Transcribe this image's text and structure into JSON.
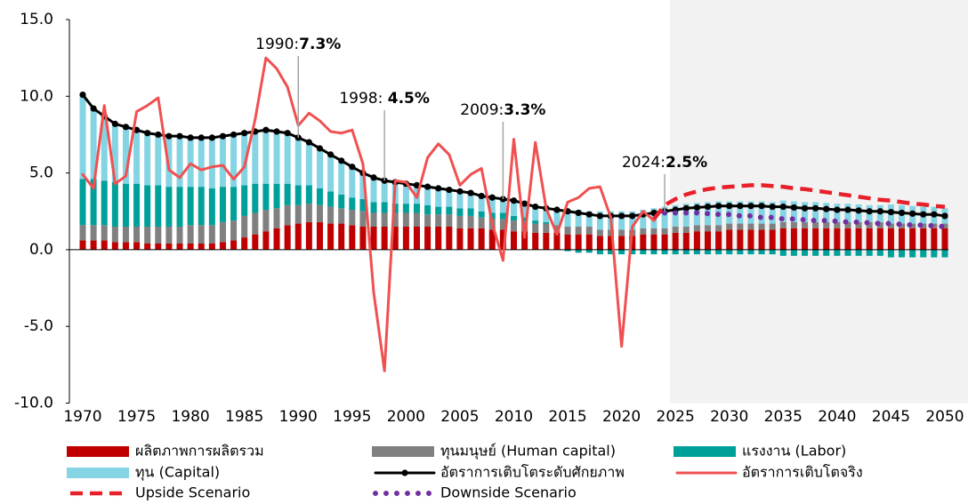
{
  "chart_data": {
    "type": "combo",
    "x": [
      1970,
      1971,
      1972,
      1973,
      1974,
      1975,
      1976,
      1977,
      1978,
      1979,
      1980,
      1981,
      1982,
      1983,
      1984,
      1985,
      1986,
      1987,
      1988,
      1989,
      1990,
      1991,
      1992,
      1993,
      1994,
      1995,
      1996,
      1997,
      1998,
      1999,
      2000,
      2001,
      2002,
      2003,
      2004,
      2005,
      2006,
      2007,
      2008,
      2009,
      2010,
      2011,
      2012,
      2013,
      2014,
      2015,
      2016,
      2017,
      2018,
      2019,
      2020,
      2021,
      2022,
      2023,
      2024,
      2025,
      2026,
      2027,
      2028,
      2029,
      2030,
      2031,
      2032,
      2033,
      2034,
      2035,
      2036,
      2037,
      2038,
      2039,
      2040,
      2041,
      2042,
      2043,
      2044,
      2045,
      2046,
      2047,
      2048,
      2049,
      2050
    ],
    "xlim": [
      1970,
      2050
    ],
    "xticks": [
      1970,
      1975,
      1980,
      1985,
      1990,
      1995,
      2000,
      2005,
      2010,
      2015,
      2020,
      2025,
      2030,
      2035,
      2040,
      2045,
      2050
    ],
    "ylim": [
      -10,
      15
    ],
    "yticks": [
      {
        "value": -10,
        "label": "-10.0"
      },
      {
        "value": -5,
        "label": "-5.0"
      },
      {
        "value": 0,
        "label": "0.0"
      },
      {
        "value": 5,
        "label": "5.0"
      },
      {
        "value": 10,
        "label": "10.0"
      },
      {
        "value": 15,
        "label": "15.0"
      }
    ],
    "series": [
      {
        "name": "ผลิตภาพการผลิตรวม",
        "type": "bar",
        "color": "#c00000",
        "values": [
          0.6,
          0.6,
          0.6,
          0.5,
          0.5,
          0.5,
          0.4,
          0.4,
          0.4,
          0.4,
          0.4,
          0.4,
          0.4,
          0.5,
          0.6,
          0.8,
          1.0,
          1.2,
          1.4,
          1.6,
          1.7,
          1.8,
          1.8,
          1.7,
          1.7,
          1.6,
          1.5,
          1.5,
          1.5,
          1.5,
          1.5,
          1.5,
          1.5,
          1.5,
          1.5,
          1.4,
          1.4,
          1.4,
          1.3,
          1.3,
          1.2,
          1.2,
          1.1,
          1.1,
          1.1,
          1.0,
          1.0,
          1.0,
          0.9,
          0.9,
          0.9,
          0.9,
          1.0,
          1.0,
          1.0,
          1.1,
          1.1,
          1.2,
          1.2,
          1.2,
          1.3,
          1.3,
          1.3,
          1.3,
          1.3,
          1.4,
          1.4,
          1.4,
          1.4,
          1.4,
          1.4,
          1.4,
          1.4,
          1.4,
          1.4,
          1.4,
          1.4,
          1.4,
          1.4,
          1.4,
          1.4
        ]
      },
      {
        "name": "ทุนมนุษย์ (Human capital)",
        "type": "bar",
        "color": "#808080",
        "values": [
          1.0,
          1.0,
          1.0,
          1.0,
          1.0,
          1.0,
          1.1,
          1.1,
          1.1,
          1.1,
          1.2,
          1.2,
          1.2,
          1.3,
          1.3,
          1.4,
          1.4,
          1.4,
          1.3,
          1.3,
          1.2,
          1.2,
          1.1,
          1.1,
          1.0,
          1.0,
          1.0,
          0.9,
          0.9,
          0.9,
          0.9,
          0.9,
          0.8,
          0.8,
          0.8,
          0.8,
          0.8,
          0.7,
          0.7,
          0.7,
          0.7,
          0.6,
          0.6,
          0.6,
          0.5,
          0.5,
          0.5,
          0.5,
          0.4,
          0.4,
          0.4,
          0.4,
          0.4,
          0.4,
          0.4,
          0.4,
          0.4,
          0.4,
          0.4,
          0.4,
          0.4,
          0.4,
          0.4,
          0.4,
          0.4,
          0.4,
          0.4,
          0.4,
          0.4,
          0.4,
          0.4,
          0.4,
          0.4,
          0.4,
          0.4,
          0.3,
          0.3,
          0.3,
          0.3,
          0.3,
          0.3
        ]
      },
      {
        "name": "แรงงาน (Labor)",
        "type": "bar",
        "color": "#00a09a",
        "values": [
          3.0,
          3.0,
          2.9,
          2.9,
          2.8,
          2.8,
          2.7,
          2.7,
          2.6,
          2.6,
          2.5,
          2.5,
          2.4,
          2.3,
          2.2,
          2.0,
          1.9,
          1.7,
          1.6,
          1.4,
          1.3,
          1.2,
          1.1,
          1.0,
          0.9,
          0.8,
          0.8,
          0.7,
          0.7,
          0.6,
          0.6,
          0.6,
          0.6,
          0.5,
          0.5,
          0.5,
          0.5,
          0.4,
          0.4,
          0.4,
          0.3,
          0.3,
          0.2,
          0.1,
          0,
          -0.1,
          -0.2,
          -0.2,
          -0.3,
          -0.3,
          -0.3,
          -0.3,
          -0.3,
          -0.3,
          -0.3,
          -0.3,
          -0.3,
          -0.3,
          -0.3,
          -0.3,
          -0.3,
          -0.3,
          -0.3,
          -0.3,
          -0.3,
          -0.4,
          -0.4,
          -0.4,
          -0.4,
          -0.4,
          -0.4,
          -0.4,
          -0.4,
          -0.4,
          -0.4,
          -0.5,
          -0.5,
          -0.5,
          -0.5,
          -0.5,
          -0.5
        ]
      },
      {
        "name": "ทุน (Capital)",
        "type": "bar",
        "color": "#84d4e4",
        "values": [
          5.5,
          4.6,
          4.2,
          3.8,
          3.7,
          3.5,
          3.4,
          3.3,
          3.3,
          3.3,
          3.2,
          3.2,
          3.3,
          3.3,
          3.4,
          3.4,
          3.4,
          3.5,
          3.4,
          3.3,
          3.1,
          2.8,
          2.6,
          2.4,
          2.2,
          2.0,
          1.7,
          1.6,
          1.4,
          1.4,
          1.3,
          1.2,
          1.2,
          1.2,
          1.1,
          1.1,
          1.0,
          1.0,
          1.0,
          0.9,
          1.0,
          0.9,
          0.9,
          0.9,
          1.0,
          1.1,
          1.1,
          1.0,
          1.2,
          1.2,
          1.2,
          1.2,
          1.2,
          1.3,
          1.4,
          1.4,
          1.5,
          1.45,
          1.5,
          1.55,
          1.45,
          1.45,
          1.45,
          1.45,
          1.4,
          1.4,
          1.35,
          1.3,
          1.3,
          1.25,
          1.2,
          1.2,
          1.15,
          1.1,
          1.1,
          1.25,
          1.2,
          1.15,
          1.1,
          1.1,
          1.0
        ]
      },
      {
        "name": "อัตราการเติบโตระดับศักยภาพ",
        "type": "line",
        "style": "markers",
        "color": "#000000",
        "values": [
          10.1,
          9.2,
          8.7,
          8.2,
          8.0,
          7.8,
          7.6,
          7.5,
          7.4,
          7.4,
          7.3,
          7.3,
          7.3,
          7.4,
          7.5,
          7.6,
          7.7,
          7.8,
          7.7,
          7.6,
          7.3,
          7.0,
          6.6,
          6.2,
          5.8,
          5.4,
          5.0,
          4.7,
          4.5,
          4.4,
          4.3,
          4.2,
          4.1,
          4.0,
          3.9,
          3.8,
          3.7,
          3.5,
          3.4,
          3.3,
          3.2,
          3.0,
          2.8,
          2.7,
          2.6,
          2.5,
          2.4,
          2.3,
          2.2,
          2.2,
          2.2,
          2.2,
          2.3,
          2.4,
          2.5,
          2.6,
          2.7,
          2.75,
          2.8,
          2.85,
          2.85,
          2.85,
          2.85,
          2.85,
          2.8,
          2.8,
          2.75,
          2.7,
          2.7,
          2.65,
          2.6,
          2.6,
          2.55,
          2.5,
          2.5,
          2.45,
          2.4,
          2.35,
          2.3,
          2.3,
          2.2
        ]
      },
      {
        "name": "อัตราการเติบโตจริง",
        "type": "line",
        "style": "solid",
        "color": "#f05050",
        "values": [
          4.9,
          4.0,
          9.4,
          4.3,
          4.8,
          9.0,
          9.4,
          9.9,
          5.2,
          4.7,
          5.6,
          5.2,
          5.4,
          5.5,
          4.6,
          5.4,
          8.5,
          12.5,
          11.8,
          10.6,
          8.1,
          8.9,
          8.4,
          7.7,
          7.6,
          7.8,
          5.6,
          -2.8,
          -7.9,
          4.5,
          4.4,
          3.4,
          6.0,
          6.9,
          6.2,
          4.2,
          4.9,
          5.3,
          1.7,
          -0.7,
          7.2,
          0.8,
          7.0,
          2.7,
          1.0,
          3.1,
          3.4,
          4.0,
          4.1,
          2.1,
          -6.3,
          1.5,
          2.5,
          1.9,
          null,
          null,
          null,
          null,
          null,
          null,
          null,
          null,
          null,
          null,
          null,
          null,
          null,
          null,
          null,
          null,
          null,
          null,
          null,
          null,
          null,
          null,
          null,
          null,
          null,
          null,
          null
        ]
      },
      {
        "name": "Upside Scenario",
        "type": "line",
        "style": "dashed",
        "color": "#e8202a",
        "values": [
          null,
          null,
          null,
          null,
          null,
          null,
          null,
          null,
          null,
          null,
          null,
          null,
          null,
          null,
          null,
          null,
          null,
          null,
          null,
          null,
          null,
          null,
          null,
          null,
          null,
          null,
          null,
          null,
          null,
          null,
          null,
          null,
          null,
          null,
          null,
          null,
          null,
          null,
          null,
          null,
          null,
          null,
          null,
          null,
          null,
          null,
          null,
          null,
          null,
          null,
          null,
          null,
          null,
          2.0,
          2.9,
          3.3,
          3.6,
          3.8,
          3.95,
          4.05,
          4.1,
          4.15,
          4.2,
          4.2,
          4.15,
          4.1,
          4.0,
          3.95,
          3.85,
          3.75,
          3.65,
          3.55,
          3.45,
          3.35,
          3.25,
          3.2,
          3.1,
          3.0,
          2.95,
          2.85,
          2.8
        ]
      },
      {
        "name": "Downside Scenario",
        "type": "line",
        "style": "dotted",
        "color": "#7030a0",
        "values": [
          null,
          null,
          null,
          null,
          null,
          null,
          null,
          null,
          null,
          null,
          null,
          null,
          null,
          null,
          null,
          null,
          null,
          null,
          null,
          null,
          null,
          null,
          null,
          null,
          null,
          null,
          null,
          null,
          null,
          null,
          null,
          null,
          null,
          null,
          null,
          null,
          null,
          null,
          null,
          null,
          null,
          null,
          null,
          null,
          null,
          null,
          null,
          null,
          null,
          null,
          null,
          null,
          null,
          null,
          2.4,
          2.4,
          2.4,
          2.4,
          2.35,
          2.3,
          2.3,
          2.2,
          2.2,
          2.1,
          2.1,
          2.0,
          2.0,
          1.95,
          1.9,
          1.9,
          1.85,
          1.8,
          1.8,
          1.75,
          1.7,
          1.7,
          1.65,
          1.6,
          1.6,
          1.55,
          1.5
        ]
      }
    ],
    "annotations": [
      {
        "label": "1990:",
        "text": "7.3%",
        "x": 1990
      },
      {
        "label": "1998: ",
        "text": "4.5%",
        "x": 1998
      },
      {
        "label": "2009:",
        "text": "3.3%",
        "x": 2009
      },
      {
        "label": "2024:",
        "text": "2.5%",
        "x": 2024
      }
    ]
  }
}
